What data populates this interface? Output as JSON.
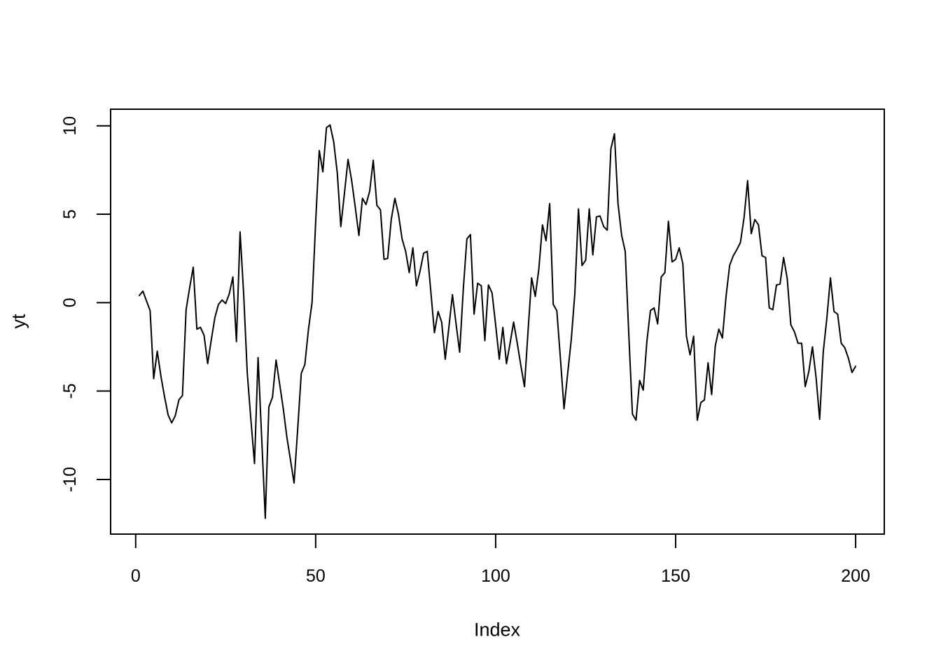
{
  "figure": {
    "background": "#ffffff",
    "xlabel": "Index",
    "ylabel": "yt"
  },
  "chart_data": {
    "type": "line",
    "title": "",
    "xlabel": "Index",
    "ylabel": "yt",
    "x_range": [
      1,
      200
    ],
    "values": [
      0.4,
      0.65,
      0.1,
      -0.45,
      -4.3,
      -2.75,
      -4.15,
      -5.3,
      -6.35,
      -6.8,
      -6.4,
      -5.5,
      -5.25,
      -0.4,
      0.85,
      2.0,
      -1.5,
      -1.4,
      -1.85,
      -3.45,
      -2.1,
      -0.85,
      -0.1,
      0.15,
      -0.05,
      0.5,
      1.45,
      -2.2,
      4.0,
      0.5,
      -4.0,
      -6.6,
      -9.1,
      -3.1,
      -7.6,
      -12.2,
      -5.9,
      -5.35,
      -3.25,
      -4.6,
      -6.0,
      -7.6,
      -8.9,
      -10.2,
      -7.2,
      -4.0,
      -3.5,
      -1.5,
      0.0,
      4.6,
      8.6,
      7.4,
      9.9,
      10.05,
      9.1,
      7.35,
      4.3,
      6.2,
      8.1,
      6.9,
      5.4,
      3.8,
      5.9,
      5.55,
      6.3,
      8.05,
      5.5,
      5.25,
      2.45,
      2.5,
      4.7,
      5.9,
      5.0,
      3.6,
      2.9,
      1.7,
      3.1,
      0.95,
      1.8,
      2.8,
      2.9,
      0.6,
      -1.7,
      -0.5,
      -1.1,
      -3.2,
      -1.4,
      0.45,
      -1.2,
      -2.8,
      0.75,
      3.6,
      3.85,
      -0.65,
      1.1,
      0.95,
      -2.15,
      1.0,
      0.55,
      -1.25,
      -3.2,
      -1.4,
      -3.45,
      -2.3,
      -1.1,
      -2.3,
      -3.55,
      -4.75,
      -1.6,
      1.4,
      0.35,
      1.9,
      4.4,
      3.5,
      5.6,
      -0.1,
      -0.45,
      -3.2,
      -6.0,
      -4.0,
      -2.1,
      0.5,
      5.3,
      2.1,
      2.4,
      5.3,
      2.7,
      4.85,
      4.9,
      4.3,
      4.1,
      8.7,
      9.55,
      5.6,
      3.8,
      2.9,
      -1.9,
      -6.3,
      -6.65,
      -4.4,
      -4.95,
      -2.2,
      -0.45,
      -0.3,
      -1.2,
      1.45,
      1.7,
      4.6,
      2.3,
      2.45,
      3.1,
      2.2,
      -1.9,
      -2.95,
      -1.9,
      -6.65,
      -5.65,
      -5.5,
      -3.4,
      -5.2,
      -2.45,
      -1.5,
      -2.0,
      0.35,
      2.1,
      2.65,
      3.0,
      3.4,
      4.8,
      6.9,
      3.9,
      4.7,
      4.4,
      2.65,
      2.55,
      -0.3,
      -0.4,
      1.0,
      1.05,
      2.55,
      1.35,
      -1.25,
      -1.65,
      -2.3,
      -2.3,
      -4.75,
      -3.9,
      -2.5,
      -4.2,
      -6.6,
      -2.8,
      -0.9,
      1.4,
      -0.5,
      -0.65,
      -2.3,
      -2.55,
      -3.15,
      -3.95,
      -3.6
    ],
    "xticks": [
      0,
      50,
      100,
      150,
      200
    ],
    "yticks": [
      -10,
      -5,
      0,
      5,
      10
    ],
    "xlim": [
      -6.96,
      207.96
    ],
    "ylim": [
      -13.09,
      10.94
    ],
    "grid": false,
    "legend": null,
    "line_color": "#000000",
    "axis_color": "#000000",
    "background": "#ffffff"
  }
}
